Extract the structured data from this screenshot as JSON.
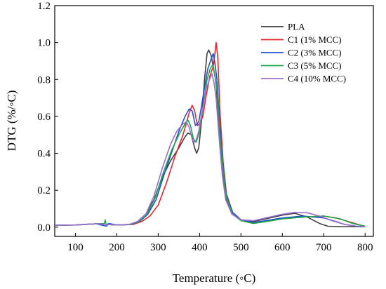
{
  "chart_data": {
    "type": "line",
    "title": "",
    "xlabel": "Temperature (◦C)",
    "ylabel": "DTG (%/◦C)",
    "xlim": [
      50,
      820
    ],
    "ylim": [
      -0.05,
      1.2
    ],
    "xticks": [
      100,
      200,
      300,
      400,
      500,
      600,
      700,
      800
    ],
    "yticks": [
      0.0,
      0.2,
      0.4,
      0.6,
      0.8,
      1.0,
      1.2
    ],
    "xtick_labels": [
      "100",
      "200",
      "300",
      "400",
      "500",
      "600",
      "700",
      "800"
    ],
    "ytick_labels": [
      "0.0",
      "0.2",
      "0.4",
      "0.6",
      "0.8",
      "1.0",
      "1.2"
    ],
    "grid": false,
    "legend_position": "top-right",
    "series": [
      {
        "name": "PLA",
        "color": "#404040",
        "points": [
          [
            50,
            0.01
          ],
          [
            100,
            0.012
          ],
          [
            150,
            0.018
          ],
          [
            200,
            0.012
          ],
          [
            230,
            0.014
          ],
          [
            250,
            0.03
          ],
          [
            270,
            0.07
          ],
          [
            290,
            0.15
          ],
          [
            310,
            0.27
          ],
          [
            330,
            0.36
          ],
          [
            350,
            0.43
          ],
          [
            365,
            0.49
          ],
          [
            372,
            0.51
          ],
          [
            380,
            0.5
          ],
          [
            388,
            0.43
          ],
          [
            393,
            0.4
          ],
          [
            398,
            0.43
          ],
          [
            405,
            0.58
          ],
          [
            412,
            0.8
          ],
          [
            418,
            0.94
          ],
          [
            422,
            0.96
          ],
          [
            428,
            0.93
          ],
          [
            433,
            0.87
          ],
          [
            440,
            0.78
          ],
          [
            448,
            0.5
          ],
          [
            455,
            0.3
          ],
          [
            465,
            0.15
          ],
          [
            480,
            0.07
          ],
          [
            500,
            0.04
          ],
          [
            530,
            0.03
          ],
          [
            560,
            0.045
          ],
          [
            600,
            0.065
          ],
          [
            630,
            0.075
          ],
          [
            660,
            0.055
          ],
          [
            690,
            0.02
          ],
          [
            710,
            0.005
          ],
          [
            740,
            0.003
          ],
          [
            800,
            0.002
          ]
        ]
      },
      {
        "name": "C1 (1% MCC)",
        "color": "#e8262a",
        "points": [
          [
            50,
            0.01
          ],
          [
            100,
            0.012
          ],
          [
            150,
            0.018
          ],
          [
            200,
            0.012
          ],
          [
            240,
            0.015
          ],
          [
            260,
            0.03
          ],
          [
            280,
            0.06
          ],
          [
            300,
            0.12
          ],
          [
            320,
            0.24
          ],
          [
            340,
            0.38
          ],
          [
            360,
            0.5
          ],
          [
            375,
            0.62
          ],
          [
            382,
            0.66
          ],
          [
            388,
            0.63
          ],
          [
            395,
            0.55
          ],
          [
            400,
            0.56
          ],
          [
            408,
            0.6
          ],
          [
            415,
            0.7
          ],
          [
            425,
            0.82
          ],
          [
            433,
            0.87
          ],
          [
            437,
            0.94
          ],
          [
            440,
            1.0
          ],
          [
            444,
            0.92
          ],
          [
            450,
            0.6
          ],
          [
            457,
            0.35
          ],
          [
            465,
            0.18
          ],
          [
            480,
            0.08
          ],
          [
            500,
            0.04
          ],
          [
            530,
            0.025
          ],
          [
            560,
            0.03
          ],
          [
            600,
            0.045
          ],
          [
            650,
            0.055
          ],
          [
            700,
            0.06
          ],
          [
            730,
            0.05
          ],
          [
            760,
            0.03
          ],
          [
            790,
            0.01
          ],
          [
            800,
            0.005
          ]
        ]
      },
      {
        "name": "C2 (3% MCC)",
        "color": "#1f4fd1",
        "points": [
          [
            50,
            0.01
          ],
          [
            100,
            0.012
          ],
          [
            150,
            0.018
          ],
          [
            175,
            0.005
          ],
          [
            180,
            0.02
          ],
          [
            200,
            0.012
          ],
          [
            235,
            0.015
          ],
          [
            255,
            0.03
          ],
          [
            275,
            0.07
          ],
          [
            295,
            0.15
          ],
          [
            315,
            0.29
          ],
          [
            335,
            0.42
          ],
          [
            350,
            0.52
          ],
          [
            365,
            0.6
          ],
          [
            375,
            0.64
          ],
          [
            382,
            0.63
          ],
          [
            390,
            0.55
          ],
          [
            398,
            0.57
          ],
          [
            405,
            0.66
          ],
          [
            413,
            0.77
          ],
          [
            420,
            0.86
          ],
          [
            428,
            0.91
          ],
          [
            433,
            0.94
          ],
          [
            437,
            0.89
          ],
          [
            442,
            0.8
          ],
          [
            450,
            0.52
          ],
          [
            457,
            0.32
          ],
          [
            465,
            0.17
          ],
          [
            480,
            0.08
          ],
          [
            500,
            0.04
          ],
          [
            530,
            0.025
          ],
          [
            560,
            0.035
          ],
          [
            600,
            0.05
          ],
          [
            650,
            0.06
          ],
          [
            700,
            0.05
          ],
          [
            730,
            0.03
          ],
          [
            750,
            0.015
          ],
          [
            780,
            0.005
          ],
          [
            800,
            0.003
          ]
        ]
      },
      {
        "name": "C3 (5% MCC)",
        "color": "#1fa84a",
        "points": [
          [
            50,
            0.01
          ],
          [
            100,
            0.012
          ],
          [
            150,
            0.018
          ],
          [
            170,
            0.02
          ],
          [
            172,
            0.04
          ],
          [
            174,
            0.015
          ],
          [
            200,
            0.012
          ],
          [
            233,
            0.015
          ],
          [
            253,
            0.03
          ],
          [
            273,
            0.07
          ],
          [
            293,
            0.16
          ],
          [
            313,
            0.3
          ],
          [
            333,
            0.42
          ],
          [
            350,
            0.5
          ],
          [
            365,
            0.56
          ],
          [
            372,
            0.58
          ],
          [
            378,
            0.55
          ],
          [
            385,
            0.48
          ],
          [
            392,
            0.46
          ],
          [
            400,
            0.52
          ],
          [
            410,
            0.68
          ],
          [
            418,
            0.8
          ],
          [
            426,
            0.86
          ],
          [
            432,
            0.88
          ],
          [
            437,
            0.82
          ],
          [
            443,
            0.72
          ],
          [
            450,
            0.48
          ],
          [
            457,
            0.3
          ],
          [
            465,
            0.16
          ],
          [
            480,
            0.07
          ],
          [
            500,
            0.035
          ],
          [
            530,
            0.02
          ],
          [
            560,
            0.03
          ],
          [
            600,
            0.045
          ],
          [
            650,
            0.055
          ],
          [
            700,
            0.06
          ],
          [
            740,
            0.045
          ],
          [
            770,
            0.02
          ],
          [
            800,
            0.005
          ]
        ]
      },
      {
        "name": "C4 (10% MCC)",
        "color": "#9b6fcf",
        "points": [
          [
            50,
            0.01
          ],
          [
            100,
            0.012
          ],
          [
            150,
            0.018
          ],
          [
            200,
            0.012
          ],
          [
            230,
            0.015
          ],
          [
            250,
            0.03
          ],
          [
            270,
            0.07
          ],
          [
            290,
            0.17
          ],
          [
            310,
            0.32
          ],
          [
            330,
            0.45
          ],
          [
            345,
            0.52
          ],
          [
            360,
            0.56
          ],
          [
            368,
            0.57
          ],
          [
            375,
            0.54
          ],
          [
            383,
            0.47
          ],
          [
            390,
            0.46
          ],
          [
            398,
            0.52
          ],
          [
            408,
            0.65
          ],
          [
            416,
            0.75
          ],
          [
            424,
            0.8
          ],
          [
            430,
            0.83
          ],
          [
            435,
            0.78
          ],
          [
            440,
            0.7
          ],
          [
            448,
            0.46
          ],
          [
            455,
            0.28
          ],
          [
            463,
            0.15
          ],
          [
            478,
            0.07
          ],
          [
            500,
            0.04
          ],
          [
            530,
            0.035
          ],
          [
            560,
            0.05
          ],
          [
            600,
            0.07
          ],
          [
            630,
            0.08
          ],
          [
            660,
            0.078
          ],
          [
            690,
            0.06
          ],
          [
            720,
            0.035
          ],
          [
            750,
            0.015
          ],
          [
            780,
            0.005
          ],
          [
            800,
            0.003
          ]
        ]
      }
    ]
  }
}
